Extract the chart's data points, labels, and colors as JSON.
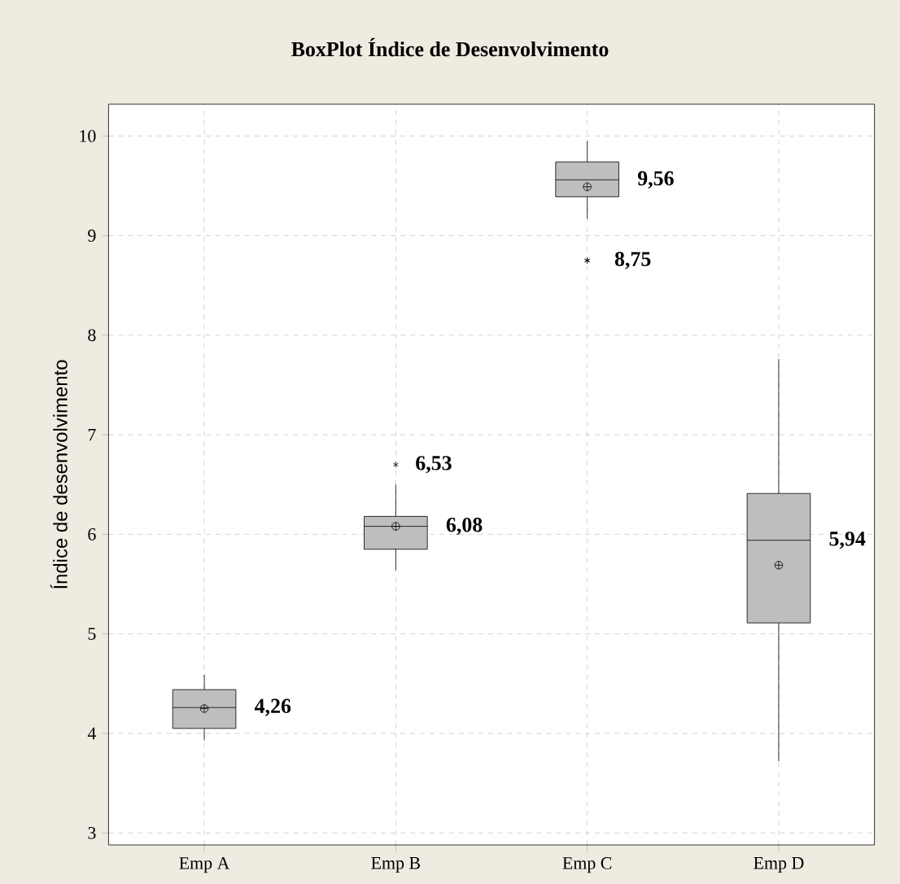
{
  "chart_data": {
    "type": "box",
    "title": "BoxPlot Índice de Desenvolvimento",
    "ylabel": "Índice de desenvolvimento",
    "categories": [
      "Emp A",
      "Emp B",
      "Emp C",
      "Emp D"
    ],
    "series": [
      {
        "color": "#bebebe",
        "boxes": [
          {
            "low": 3.93,
            "q1": 4.05,
            "median": 4.26,
            "q3": 4.44,
            "high": 4.59,
            "mean": 4.25
          },
          {
            "low": 5.64,
            "q1": 5.85,
            "median": 6.08,
            "q3": 6.18,
            "high": 6.5,
            "mean": 6.08,
            "outliers": [
              6.7
            ]
          },
          {
            "low": 9.17,
            "q1": 9.39,
            "median": 9.56,
            "q3": 9.74,
            "high": 9.95,
            "mean": 9.49,
            "outliers": [
              8.75,
              8.75
            ]
          },
          {
            "low": 3.72,
            "q1": 5.11,
            "median": 5.94,
            "q3": 6.41,
            "high": 7.76,
            "mean": 5.69
          }
        ]
      }
    ],
    "ylim": [
      2.88,
      10.32
    ],
    "yticks": [
      3,
      4,
      5,
      6,
      7,
      8,
      9,
      10
    ],
    "grid": true,
    "annotations": [
      "4,26",
      "6,53",
      "6,08",
      "9,56",
      "8,75",
      "5,94"
    ]
  }
}
